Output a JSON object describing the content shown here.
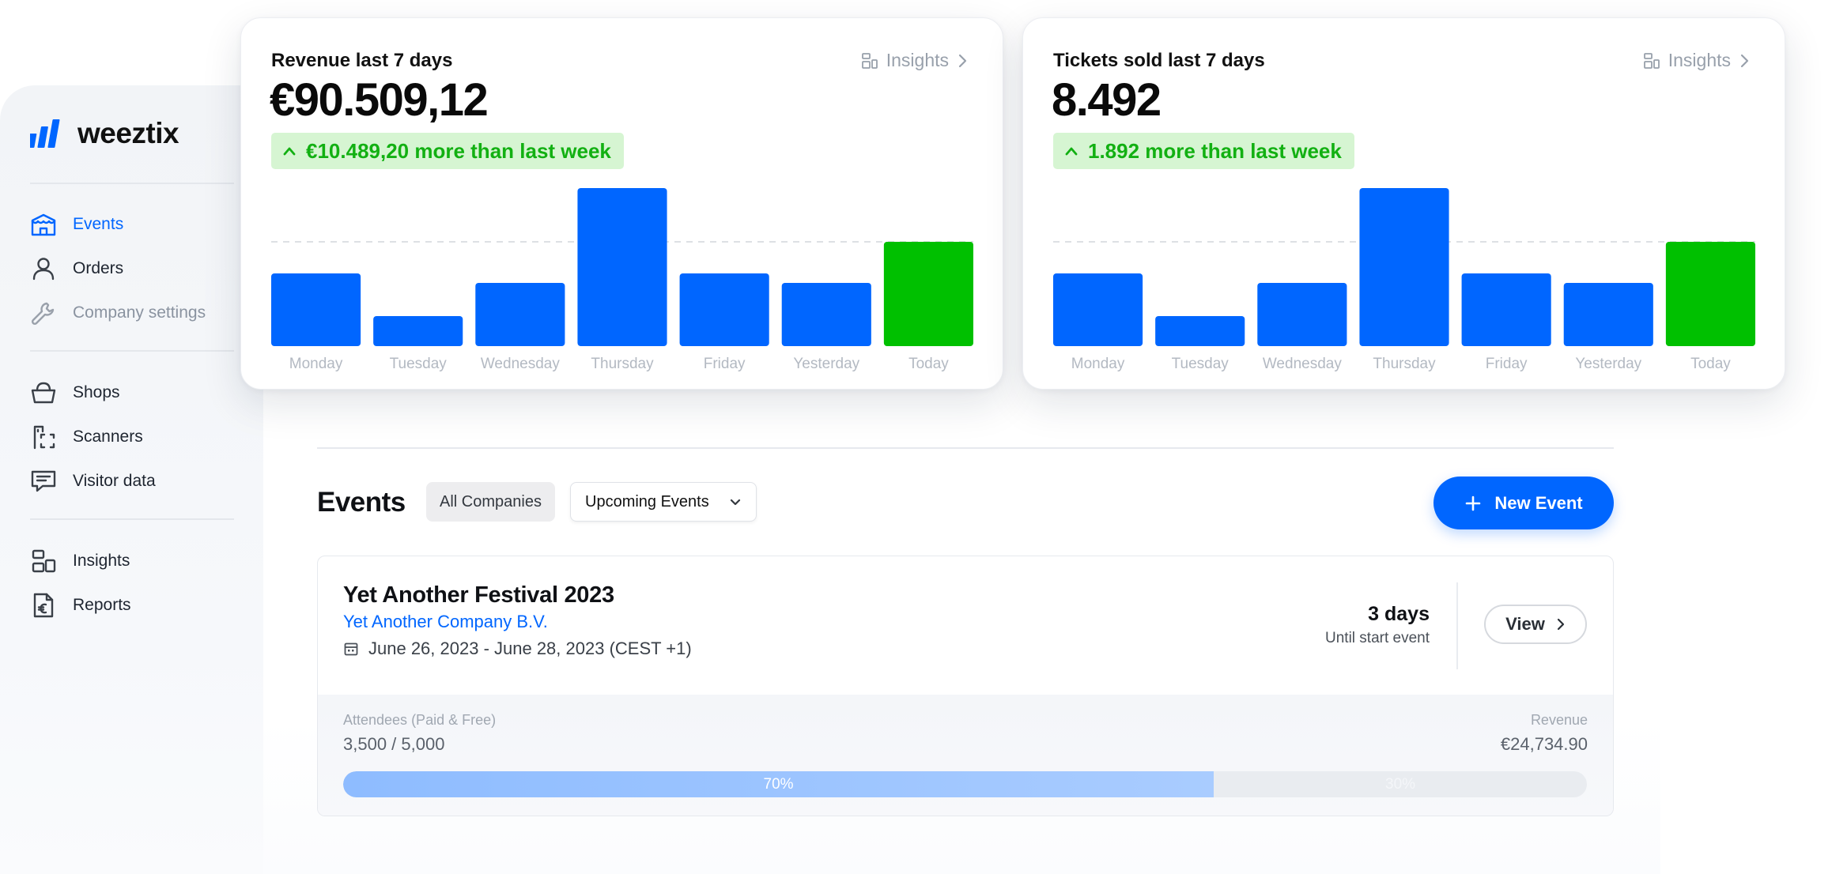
{
  "brand": {
    "name": "weeztix",
    "blue": "#0066ff",
    "green": "#00c000",
    "badge_bg": "#d6f5d2"
  },
  "sidebar": {
    "groups": [
      [
        {
          "label": "Events",
          "icon": "tent-icon",
          "active": true
        },
        {
          "label": "Orders",
          "icon": "user-icon"
        },
        {
          "label": "Company settings",
          "icon": "wrench-icon",
          "muted": true
        }
      ],
      [
        {
          "label": "Shops",
          "icon": "basket-icon"
        },
        {
          "label": "Scanners",
          "icon": "scanner-icon"
        },
        {
          "label": "Visitor data",
          "icon": "message-icon"
        }
      ],
      [
        {
          "label": "Insights",
          "icon": "insights-icon"
        },
        {
          "label": "Reports",
          "icon": "report-euro-icon"
        }
      ]
    ]
  },
  "revenue_card": {
    "title": "Revenue last 7 days",
    "insights_label": "Insights",
    "value": "€90.509,12",
    "badge": "€10.489,20 more than last week"
  },
  "tickets_card": {
    "title": "Tickets sold last 7 days",
    "insights_label": "Insights",
    "value": "8.492",
    "badge": "1.892 more than last week"
  },
  "chart_data": [
    {
      "type": "bar",
      "categories": [
        "Monday",
        "Tuesday",
        "Wednesday",
        "Thursday",
        "Friday",
        "Yesterday",
        "Today"
      ],
      "values": [
        46,
        19,
        40,
        100,
        46,
        40,
        66
      ],
      "highlight_last": true,
      "reference_line": 66,
      "ylim": [
        0,
        100
      ],
      "grid": false,
      "colors": {
        "bar": "#0066ff",
        "today": "#00c000",
        "reference": "#d2d6dc"
      }
    },
    {
      "type": "bar",
      "categories": [
        "Monday",
        "Tuesday",
        "Wednesday",
        "Thursday",
        "Friday",
        "Yesterday",
        "Today"
      ],
      "values": [
        46,
        19,
        40,
        100,
        46,
        40,
        66
      ],
      "highlight_last": true,
      "reference_line": 66,
      "ylim": [
        0,
        100
      ],
      "grid": false,
      "colors": {
        "bar": "#0066ff",
        "today": "#00c000",
        "reference": "#d2d6dc"
      }
    }
  ],
  "events": {
    "title": "Events",
    "filter_companies": "All Companies",
    "filter_selected": "Upcoming Events",
    "new_event_label": "New Event",
    "list": [
      {
        "name": "Yet Another Festival 2023",
        "company": "Yet Another Company B.V.",
        "dates": "June 26, 2023 - June 28, 2023 (CEST +1)",
        "days_value": "3 days",
        "days_label": "Until start event",
        "view_label": "View",
        "attendees_label": "Attendees (Paid & Free)",
        "attendees_value": "3,500 / 5,000",
        "revenue_label": "Revenue",
        "revenue_value": "€24,734.90",
        "progress": 0.7,
        "progress_label": "70%",
        "remaining_label": "30%"
      }
    ]
  }
}
